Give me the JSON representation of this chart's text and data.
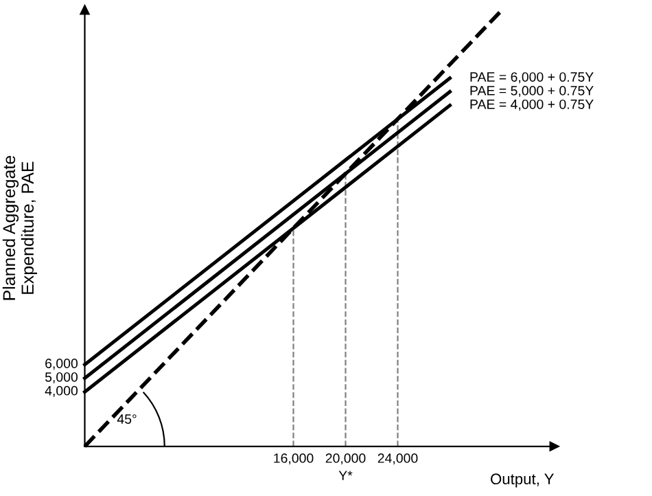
{
  "chart_data": {
    "type": "line",
    "xlabel": "Output, Y",
    "ylabel": "Planned Aggregate\nExpenditure, PAE",
    "series": [
      {
        "name": "PAE = 6,000 + 0.75Y",
        "color": "#000000",
        "x": [
          0,
          28000
        ],
        "values": [
          6000,
          27000
        ]
      },
      {
        "name": "PAE = 5,000 + 0.75Y",
        "color": "#000000",
        "x": [
          0,
          28000
        ],
        "values": [
          5000,
          26000
        ]
      },
      {
        "name": "PAE = 4,000 + 0.75Y",
        "color": "#000000",
        "x": [
          0,
          28000
        ],
        "values": [
          4000,
          25000
        ]
      },
      {
        "color": "#000000",
        "line_style": "dashed",
        "x": [
          0,
          32000
        ],
        "values": [
          0,
          32000
        ]
      }
    ],
    "xlim": [
      0,
      36000
    ],
    "ylim": [
      0,
      32000
    ],
    "xticks": [
      {
        "value": 16000,
        "label": "16,000"
      },
      {
        "value": 20000,
        "label": "20,000"
      },
      {
        "value": 24000,
        "label": "24,000"
      }
    ],
    "yticks": [
      {
        "value": 4000,
        "label": "4,000"
      },
      {
        "value": 5000,
        "label": "5,000"
      },
      {
        "value": 6000,
        "label": "6,000"
      }
    ],
    "ref_lines": [
      {
        "axis": "x",
        "value": 16000,
        "color": "#808080",
        "line_style": "dashed"
      },
      {
        "axis": "x",
        "value": 20000,
        "color": "#808080",
        "line_style": "dashed"
      },
      {
        "axis": "x",
        "value": 24000,
        "color": "#808080",
        "line_style": "dashed"
      }
    ],
    "annotations": [
      "Y*",
      "45°"
    ],
    "line_style": "solid",
    "marker": "none",
    "grid": false,
    "legend": false
  }
}
